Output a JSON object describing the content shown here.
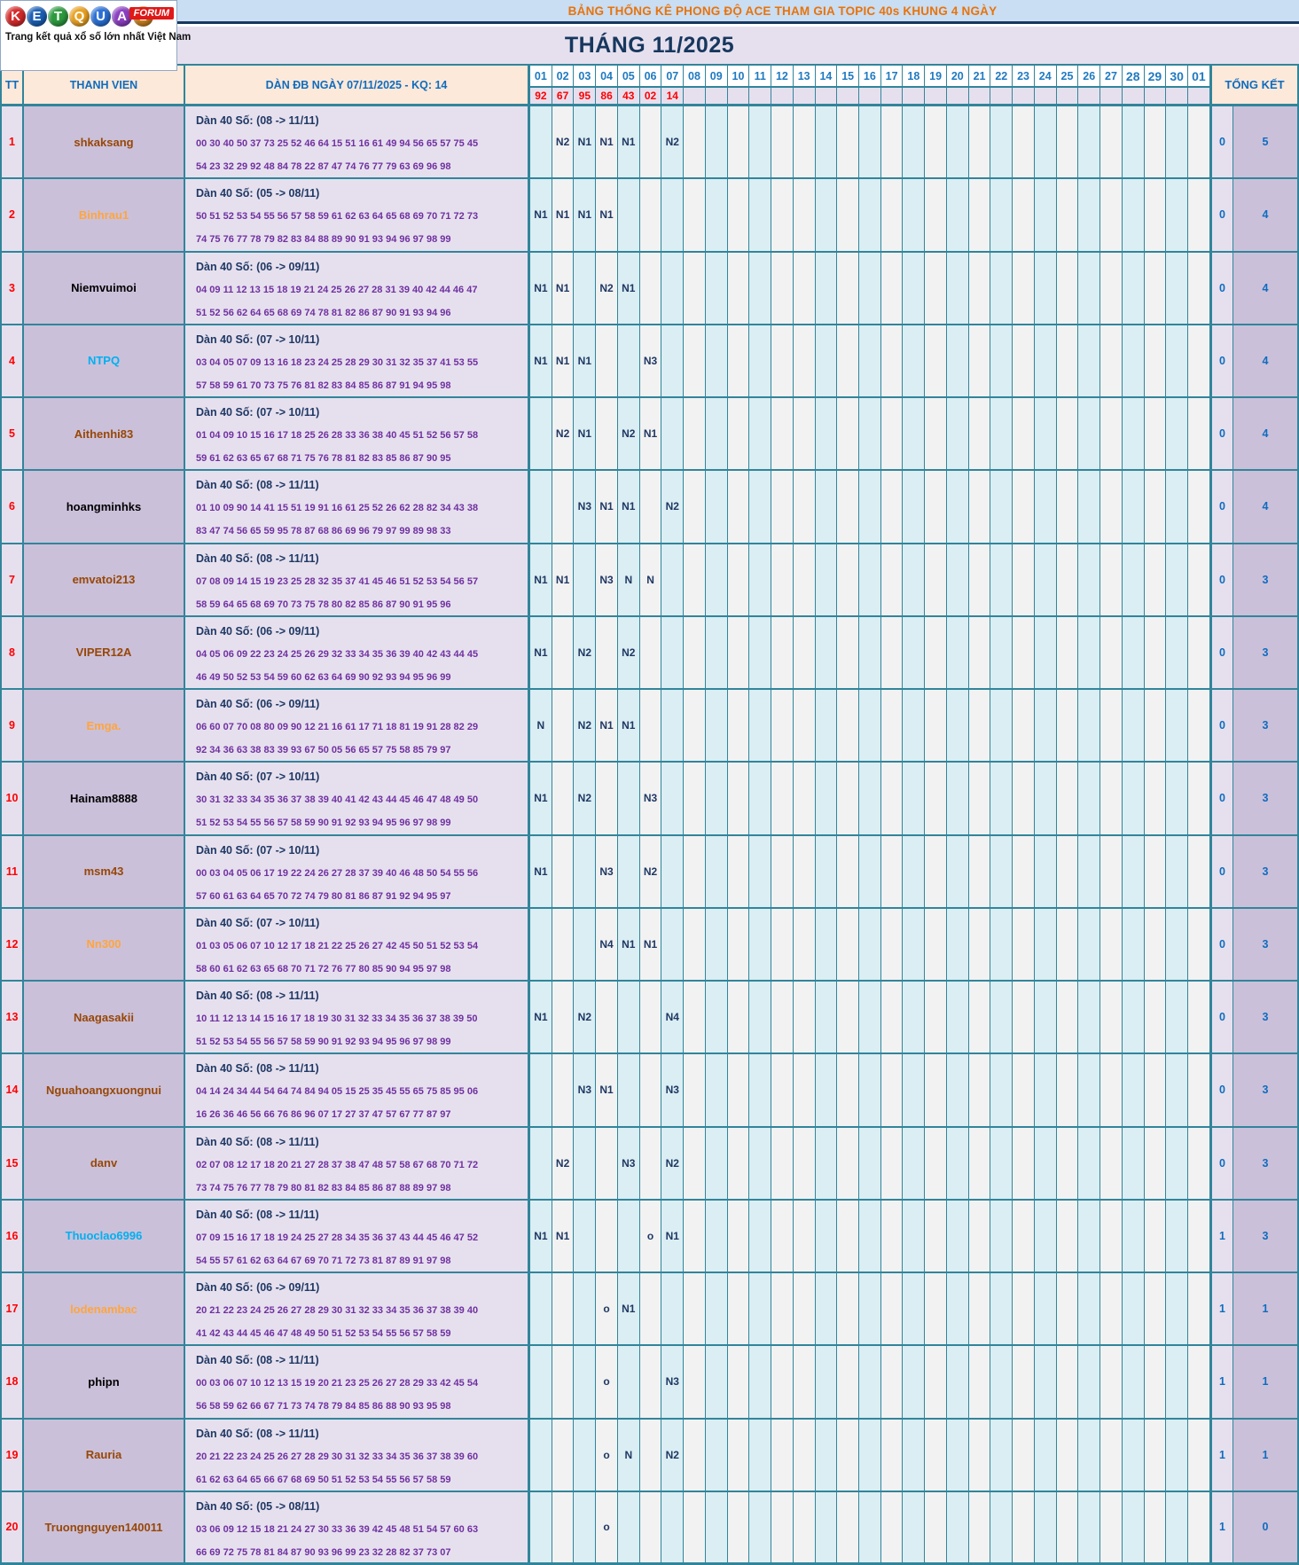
{
  "banner": {
    "text": "BẢNG THỐNG KÊ PHONG ĐỘ ACE THAM GIA TOPIC 40s KHUNG 4 NGÀY",
    "bg": "#c9ddf3",
    "text_color": "#e8730a"
  },
  "title": "THÁNG 11/2025",
  "logo": {
    "brand_letters": [
      {
        "ch": "K",
        "color": "#d42a2a"
      },
      {
        "ch": "E",
        "color": "#1a5fb4"
      },
      {
        "ch": "T",
        "color": "#2d9a3f"
      },
      {
        "ch": "Q",
        "color": "#e8a020"
      },
      {
        "ch": "U",
        "color": "#2a6fd4"
      },
      {
        "ch": "A",
        "color": "#8a3fc0"
      },
      {
        "ch": "2",
        "color": "#c87f1e"
      }
    ],
    "badge": "FORUM",
    "tagline": "Trang kết quả xổ số lớn nhất Việt Nam"
  },
  "table": {
    "headers": {
      "tt": "TT",
      "member": "THANH VIEN",
      "dan": "DÀN ĐB NGÀY 07/11/2025 - KQ: 14",
      "tongket": "TỔNG KẾT"
    },
    "day_headers": [
      "01",
      "02",
      "03",
      "04",
      "05",
      "06",
      "07",
      "08",
      "09",
      "10",
      "11",
      "12",
      "13",
      "14",
      "15",
      "16",
      "17",
      "18",
      "19",
      "20",
      "21",
      "22",
      "23",
      "24",
      "25",
      "26",
      "27",
      "28",
      "29",
      "30",
      "01"
    ],
    "big_day_header_indices": [
      27,
      28,
      29,
      30
    ],
    "kq_values": [
      "92",
      "67",
      "95",
      "86",
      "43",
      "02",
      "14"
    ],
    "colors": {
      "border_teal": "#31859b",
      "header_peach": "#fde9d9",
      "lavender": "#e6e0ee",
      "member_purple": "#cbc0da",
      "day_cyan": "#daeef3",
      "day_plain": "#f2f2f2",
      "mark_navy": "#1f3864",
      "numbers_purple": "#7030a0",
      "kq_red": "#ff0000",
      "header_blue": "#0f6cbf"
    }
  },
  "rows": [
    {
      "tt": "1",
      "member": "shkaksang",
      "member_color": "#974706",
      "dan_title": "Dàn 40 Số: (08 -> 11/11)",
      "numbers_line1": "00 30 40 50 37 73 25 52 46 64 15 51 16 61 49 94 56 65 57 75 45",
      "numbers_line2": "54 23 32 29 92 48 84 78 22 87 47 74 76 77 79 63 69 96 98",
      "marks": {
        "2": "N2",
        "3": "N1",
        "4": "N1",
        "5": "N1",
        "7": "N2"
      },
      "hit": "0",
      "score": "5"
    },
    {
      "tt": "2",
      "member": "Binhrau1",
      "member_color": "#ffa53c",
      "dan_title": "Dàn 40 Số: (05 -> 08/11)",
      "numbers_line1": "50 51 52 53 54 55 56 57 58 59 61 62 63 64 65 68 69 70 71 72 73",
      "numbers_line2": "74 75 76 77 78 79 82 83 84 88 89 90 91 93 94 96 97 98 99",
      "marks": {
        "1": "N1",
        "2": "N1",
        "3": "N1",
        "4": "N1"
      },
      "hit": "0",
      "score": "4"
    },
    {
      "tt": "3",
      "member": "Niemvuimoi",
      "member_color": "#000000",
      "dan_title": "Dàn 40 Số: (06 -> 09/11)",
      "numbers_line1": "04 09 11 12 13 15 18 19 21 24 25 26 27 28 31 39 40 42 44 46 47",
      "numbers_line2": "51 52 56 62 64 65 68 69 74 78 81 82 86 87 90 91 93 94 96",
      "marks": {
        "1": "N1",
        "2": "N1",
        "4": "N2",
        "5": "N1"
      },
      "hit": "0",
      "score": "4"
    },
    {
      "tt": "4",
      "member": "NTPQ",
      "member_color": "#00b0f0",
      "dan_title": "Dàn 40 Số: (07 -> 10/11)",
      "numbers_line1": "03 04 05 07 09 13 16 18 23 24 25 28 29 30 31 32 35 37 41 53 55",
      "numbers_line2": "57 58 59 61 70 73 75 76 81 82 83 84 85 86 87 91 94 95 98",
      "marks": {
        "1": "N1",
        "2": "N1",
        "3": "N1",
        "6": "N3"
      },
      "hit": "0",
      "score": "4"
    },
    {
      "tt": "5",
      "member": "Aithenhi83",
      "member_color": "#974706",
      "dan_title": "Dàn 40 Số: (07 -> 10/11)",
      "numbers_line1": "01 04 09 10 15 16 17 18 25 26 28 33 36 38 40 45 51 52 56 57 58",
      "numbers_line2": "59 61 62 63 65 67 68 71 75 76 78 81 82 83 85 86 87 90 95",
      "marks": {
        "2": "N2",
        "3": "N1",
        "5": "N2",
        "6": "N1"
      },
      "hit": "0",
      "score": "4"
    },
    {
      "tt": "6",
      "member": "hoangminhks",
      "member_color": "#000000",
      "dan_title": "Dàn 40 Số: (08 -> 11/11)",
      "numbers_line1": "01 10 09 90 14 41 15 51 19 91 16 61 25 52 26 62 28 82 34 43 38",
      "numbers_line2": "83 47 74 56 65 59 95 78 87 68 86 69 96 79 97 99 89 98 33",
      "marks": {
        "3": "N3",
        "4": "N1",
        "5": "N1",
        "7": "N2"
      },
      "hit": "0",
      "score": "4"
    },
    {
      "tt": "7",
      "member": "emvatoi213",
      "member_color": "#974706",
      "dan_title": "Dàn 40 Số: (08 -> 11/11)",
      "numbers_line1": "07 08 09 14 15 19 23 25 28 32 35 37 41 45 46 51 52 53 54 56 57",
      "numbers_line2": "58 59 64 65 68 69 70 73 75 78 80 82 85 86 87 90 91 95 96",
      "marks": {
        "1": "N1",
        "2": "N1",
        "4": "N3",
        "5": "N",
        "6": "N"
      },
      "hit": "0",
      "score": "3"
    },
    {
      "tt": "8",
      "member": "VIPER12A",
      "member_color": "#974706",
      "dan_title": "Dàn 40 Số: (06 -> 09/11)",
      "numbers_line1": "04 05 06 09 22 23 24 25 26 29 32 33 34 35 36 39 40 42 43 44 45",
      "numbers_line2": "46 49 50 52 53 54 59 60 62 63 64 69 90 92 93 94 95 96 99",
      "marks": {
        "1": "N1",
        "3": "N2",
        "5": "N2"
      },
      "hit": "0",
      "score": "3"
    },
    {
      "tt": "9",
      "member": "Emga.",
      "member_color": "#ffa53c",
      "dan_title": "Dàn 40 Số: (06 -> 09/11)",
      "numbers_line1": "06 60 07 70 08 80 09 90 12 21 16 61 17 71 18 81 19 91 28 82 29",
      "numbers_line2": "92 34 36 63 38 83 39 93 67 50 05 56 65 57 75 58 85 79 97",
      "marks": {
        "1": "N",
        "3": "N2",
        "4": "N1",
        "5": "N1"
      },
      "hit": "0",
      "score": "3"
    },
    {
      "tt": "10",
      "member": "Hainam8888",
      "member_color": "#000000",
      "dan_title": "Dàn 40 Số: (07 -> 10/11)",
      "numbers_line1": "30 31 32 33 34 35 36 37 38 39 40 41 42 43 44 45 46 47 48 49 50",
      "numbers_line2": "51 52 53 54 55 56 57 58 59 90 91 92 93 94 95 96 97 98 99",
      "marks": {
        "1": "N1",
        "3": "N2",
        "6": "N3"
      },
      "hit": "0",
      "score": "3"
    },
    {
      "tt": "11",
      "member": "msm43",
      "member_color": "#974706",
      "dan_title": "Dàn 40 Số: (07 -> 10/11)",
      "numbers_line1": "00 03 04 05 06 17 19 22 24 26 27 28 37 39 40 46 48 50 54 55 56",
      "numbers_line2": "57 60 61 63 64 65 70 72 74 79 80 81 86 87 91 92 94 95 97",
      "marks": {
        "1": "N1",
        "4": "N3",
        "6": "N2"
      },
      "hit": "0",
      "score": "3"
    },
    {
      "tt": "12",
      "member": "Nn300",
      "member_color": "#ffa53c",
      "dan_title": "Dàn 40 Số: (07 -> 10/11)",
      "numbers_line1": "01 03 05 06 07 10 12 17 18 21 22 25 26 27 42 45 50 51 52 53 54",
      "numbers_line2": "58 60 61 62 63 65 68 70 71 72 76 77 80 85 90 94 95 97 98",
      "marks": {
        "4": "N4",
        "5": "N1",
        "6": "N1"
      },
      "hit": "0",
      "score": "3"
    },
    {
      "tt": "13",
      "member": "Naagasakii",
      "member_color": "#974706",
      "dan_title": "Dàn 40 Số: (08 -> 11/11)",
      "numbers_line1": "10 11 12 13 14 15 16 17 18 19 30 31 32 33 34 35 36 37 38 39 50",
      "numbers_line2": "51 52 53 54 55 56 57 58 59 90 91 92 93 94 95 96 97 98 99",
      "marks": {
        "1": "N1",
        "3": "N2",
        "7": "N4"
      },
      "hit": "0",
      "score": "3"
    },
    {
      "tt": "14",
      "member": "Nguahoangxuongnui",
      "member_color": "#974706",
      "dan_title": "Dàn 40 Số: (08 -> 11/11)",
      "numbers_line1": "04 14 24 34 44 54 64 74 84 94 05 15 25 35 45 55 65 75 85 95 06",
      "numbers_line2": "16 26 36 46 56 66 76 86 96 07 17 27 37 47 57 67 77 87 97",
      "marks": {
        "3": "N3",
        "4": "N1",
        "7": "N3"
      },
      "hit": "0",
      "score": "3"
    },
    {
      "tt": "15",
      "member": "danv",
      "member_color": "#974706",
      "dan_title": "Dàn 40 Số: (08 -> 11/11)",
      "numbers_line1": "02 07 08 12 17 18 20 21 27 28 37 38 47 48 57 58 67 68 70 71 72",
      "numbers_line2": "73 74 75 76 77 78 79 80 81 82 83 84 85 86 87 88 89 97 98",
      "marks": {
        "2": "N2",
        "5": "N3",
        "7": "N2"
      },
      "hit": "0",
      "score": "3"
    },
    {
      "tt": "16",
      "member": "Thuoclao6996",
      "member_color": "#00b0f0",
      "dan_title": "Dàn 40 Số: (08 -> 11/11)",
      "numbers_line1": "07 09 15 16 17 18 19 24 25 27 28 34 35 36 37 43 44 45 46 47 52",
      "numbers_line2": "54 55 57 61 62 63 64 67 69 70 71 72 73 81 87 89 91 97 98",
      "marks": {
        "1": "N1",
        "2": "N1",
        "6": "o",
        "7": "N1"
      },
      "hit": "1",
      "score": "3"
    },
    {
      "tt": "17",
      "member": "lodenambac",
      "member_color": "#ffa53c",
      "dan_title": "Dàn 40 Số: (06 -> 09/11)",
      "numbers_line1": "20 21 22 23 24 25 26 27 28 29 30 31 32 33 34 35 36 37 38 39 40",
      "numbers_line2": "41 42 43 44 45 46 47 48 49 50 51 52 53 54 55 56 57 58 59",
      "marks": {
        "4": "o",
        "5": "N1"
      },
      "hit": "1",
      "score": "1"
    },
    {
      "tt": "18",
      "member": "phipn",
      "member_color": "#000000",
      "dan_title": "Dàn 40 Số: (08 -> 11/11)",
      "numbers_line1": "00 03 06 07 10 12 13 15 19 20 21 23 25 26 27 28 29 33 42 45 54",
      "numbers_line2": "56 58 59 62 66 67 71 73 74 78 79 84 85 86 88 90 93 95 98",
      "marks": {
        "4": "o",
        "7": "N3"
      },
      "hit": "1",
      "score": "1"
    },
    {
      "tt": "19",
      "member": "Rauria",
      "member_color": "#974706",
      "dan_title": "Dàn 40 Số: (08 -> 11/11)",
      "numbers_line1": "20 21 22 23 24 25 26 27 28 29 30 31 32 33 34 35 36 37 38 39 60",
      "numbers_line2": "61 62 63 64 65 66 67 68 69 50 51 52 53 54 55 56 57 58 59",
      "marks": {
        "4": "o",
        "5": "N",
        "7": "N2"
      },
      "hit": "1",
      "score": "1"
    },
    {
      "tt": "20",
      "member": "Truongnguyen140011",
      "member_color": "#974706",
      "dan_title": "Dàn 40 Số: (05 -> 08/11)",
      "numbers_line1": "03 06 09 12 15 18 21 24 27 30 33 36 39 42 45 48 51 54 57 60 63",
      "numbers_line2": "66 69 72 75 78 81 84 87 90 93 96 99 23 32 28 82 37 73 07",
      "marks": {
        "4": "o"
      },
      "hit": "1",
      "score": "0"
    }
  ]
}
